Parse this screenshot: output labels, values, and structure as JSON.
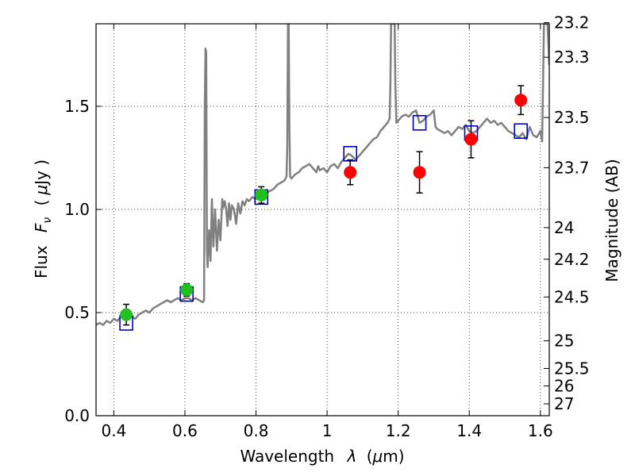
{
  "chart_data": {
    "type": "scatter",
    "title": "",
    "xlabel_text": "Wavelength",
    "xlabel_symbol": "λ",
    "xlabel_unit_open": "(",
    "xlabel_unit_mu": "μ",
    "xlabel_unit_rest": "m)",
    "ylabel_text": "Flux",
    "ylabel_symbol": "F",
    "ylabel_subscript": "ν",
    "ylabel_unit_open": "(",
    "ylabel_unit_mu": "μ",
    "ylabel_unit_rest": "Jy )",
    "y2label": "Magnitude (AB)",
    "xlim": [
      0.35,
      1.625
    ],
    "ylim": [
      0.0,
      1.9
    ],
    "grid": true,
    "xticks": [
      {
        "value": 0.4,
        "label": "0.4"
      },
      {
        "value": 0.6,
        "label": "0.6"
      },
      {
        "value": 0.8,
        "label": "0.8"
      },
      {
        "value": 1.0,
        "label": "1"
      },
      {
        "value": 1.2,
        "label": "1.2"
      },
      {
        "value": 1.4,
        "label": "1.4"
      },
      {
        "value": 1.6,
        "label": "1.6"
      }
    ],
    "yticks": [
      {
        "value": 0.0,
        "label": "0.0"
      },
      {
        "value": 0.5,
        "label": "0.5"
      },
      {
        "value": 1.0,
        "label": "1.0"
      },
      {
        "value": 1.5,
        "label": "1.5"
      }
    ],
    "magnitude_ticks": [
      {
        "value": 23.2,
        "label": "23.2"
      },
      {
        "value": 23.3,
        "label": "23.3"
      },
      {
        "value": 23.5,
        "label": "23.5"
      },
      {
        "value": 23.7,
        "label": "23.7"
      },
      {
        "value": 24,
        "label": "24"
      },
      {
        "value": 24.2,
        "label": "24.2"
      },
      {
        "value": 24.5,
        "label": "24.5"
      },
      {
        "value": 25,
        "label": "25"
      },
      {
        "value": 25.5,
        "label": "25.5"
      },
      {
        "value": 26,
        "label": "26"
      },
      {
        "value": 27,
        "label": "27"
      }
    ],
    "series": [
      {
        "kind": "spectrum",
        "color": "#808080",
        "points": [
          [
            0.35,
            0.44
          ],
          [
            0.36,
            0.45
          ],
          [
            0.37,
            0.44
          ],
          [
            0.38,
            0.46
          ],
          [
            0.39,
            0.45
          ],
          [
            0.4,
            0.47
          ],
          [
            0.41,
            0.46
          ],
          [
            0.42,
            0.48
          ],
          [
            0.43,
            0.47
          ],
          [
            0.44,
            0.49
          ],
          [
            0.45,
            0.48
          ],
          [
            0.46,
            0.47
          ],
          [
            0.47,
            0.49
          ],
          [
            0.48,
            0.5
          ],
          [
            0.49,
            0.51
          ],
          [
            0.5,
            0.5
          ],
          [
            0.51,
            0.52
          ],
          [
            0.52,
            0.53
          ],
          [
            0.53,
            0.54
          ],
          [
            0.54,
            0.55
          ],
          [
            0.55,
            0.56
          ],
          [
            0.56,
            0.55
          ],
          [
            0.57,
            0.56
          ],
          [
            0.58,
            0.57
          ],
          [
            0.59,
            0.56
          ],
          [
            0.6,
            0.57
          ],
          [
            0.61,
            0.57
          ],
          [
            0.62,
            0.56
          ],
          [
            0.63,
            0.57
          ],
          [
            0.64,
            0.56
          ],
          [
            0.65,
            0.55
          ],
          [
            0.654,
            0.56
          ],
          [
            0.656,
            1.5
          ],
          [
            0.658,
            1.78
          ],
          [
            0.66,
            1.76
          ],
          [
            0.662,
            0.8
          ],
          [
            0.664,
            0.72
          ],
          [
            0.668,
            0.9
          ],
          [
            0.672,
            0.75
          ],
          [
            0.676,
            1.05
          ],
          [
            0.68,
            0.82
          ],
          [
            0.685,
            1.0
          ],
          [
            0.69,
            0.8
          ],
          [
            0.695,
            0.95
          ],
          [
            0.7,
            0.85
          ],
          [
            0.705,
            1.05
          ],
          [
            0.708,
            1.01
          ],
          [
            0.712,
            1.04
          ],
          [
            0.716,
            1.0
          ],
          [
            0.72,
            0.92
          ],
          [
            0.724,
            1.03
          ],
          [
            0.728,
            0.95
          ],
          [
            0.732,
            1.02
          ],
          [
            0.738,
            1.0
          ],
          [
            0.744,
            0.93
          ],
          [
            0.75,
            1.03
          ],
          [
            0.756,
            0.98
          ],
          [
            0.762,
            1.04
          ],
          [
            0.768,
            1.02
          ],
          [
            0.774,
            1.05
          ],
          [
            0.78,
            1.04
          ],
          [
            0.79,
            1.06
          ],
          [
            0.8,
            1.05
          ],
          [
            0.81,
            1.07
          ],
          [
            0.82,
            1.06
          ],
          [
            0.83,
            1.08
          ],
          [
            0.84,
            1.09
          ],
          [
            0.85,
            1.1
          ],
          [
            0.86,
            1.12
          ],
          [
            0.87,
            1.13
          ],
          [
            0.88,
            1.14
          ],
          [
            0.886,
            1.16
          ],
          [
            0.888,
            1.3
          ],
          [
            0.89,
            1.9
          ],
          [
            0.892,
            1.9
          ],
          [
            0.894,
            1.4
          ],
          [
            0.896,
            1.16
          ],
          [
            0.9,
            1.15
          ],
          [
            0.91,
            1.17
          ],
          [
            0.92,
            1.18
          ],
          [
            0.93,
            1.2
          ],
          [
            0.94,
            1.21
          ],
          [
            0.95,
            1.22
          ],
          [
            0.96,
            1.2
          ],
          [
            0.97,
            1.18
          ],
          [
            0.975,
            1.21
          ],
          [
            0.98,
            1.19
          ],
          [
            0.99,
            1.2
          ],
          [
            1.0,
            1.18
          ],
          [
            1.01,
            1.21
          ],
          [
            1.02,
            1.22
          ],
          [
            1.03,
            1.2
          ],
          [
            1.04,
            1.23
          ],
          [
            1.05,
            1.25
          ],
          [
            1.06,
            1.27
          ],
          [
            1.07,
            1.26
          ],
          [
            1.08,
            1.24
          ],
          [
            1.09,
            1.26
          ],
          [
            1.1,
            1.28
          ],
          [
            1.11,
            1.3
          ],
          [
            1.12,
            1.32
          ],
          [
            1.13,
            1.34
          ],
          [
            1.14,
            1.35
          ],
          [
            1.15,
            1.38
          ],
          [
            1.16,
            1.4
          ],
          [
            1.17,
            1.42
          ],
          [
            1.176,
            1.44
          ],
          [
            1.178,
            1.6
          ],
          [
            1.18,
            1.9
          ],
          [
            1.19,
            1.9
          ],
          [
            1.192,
            1.6
          ],
          [
            1.195,
            1.42
          ],
          [
            1.2,
            1.43
          ],
          [
            1.21,
            1.45
          ],
          [
            1.22,
            1.46
          ],
          [
            1.23,
            1.45
          ],
          [
            1.24,
            1.47
          ],
          [
            1.25,
            1.48
          ],
          [
            1.26,
            1.42
          ],
          [
            1.27,
            1.43
          ],
          [
            1.28,
            1.45
          ],
          [
            1.29,
            1.46
          ],
          [
            1.3,
            1.48
          ],
          [
            1.305,
            1.4
          ],
          [
            1.31,
            1.39
          ],
          [
            1.32,
            1.38
          ],
          [
            1.33,
            1.37
          ],
          [
            1.34,
            1.38
          ],
          [
            1.35,
            1.36
          ],
          [
            1.36,
            1.38
          ],
          [
            1.37,
            1.4
          ],
          [
            1.38,
            1.39
          ],
          [
            1.39,
            1.41
          ],
          [
            1.4,
            1.38
          ],
          [
            1.41,
            1.37
          ],
          [
            1.42,
            1.38
          ],
          [
            1.43,
            1.4
          ],
          [
            1.44,
            1.42
          ],
          [
            1.45,
            1.44
          ],
          [
            1.46,
            1.42
          ],
          [
            1.47,
            1.43
          ],
          [
            1.48,
            1.41
          ],
          [
            1.49,
            1.42
          ],
          [
            1.5,
            1.4
          ],
          [
            1.51,
            1.38
          ],
          [
            1.52,
            1.37
          ],
          [
            1.53,
            1.36
          ],
          [
            1.54,
            1.35
          ],
          [
            1.55,
            1.37
          ],
          [
            1.56,
            1.34
          ],
          [
            1.57,
            1.4
          ],
          [
            1.58,
            1.36
          ],
          [
            1.59,
            1.35
          ],
          [
            1.6,
            1.38
          ],
          [
            1.605,
            1.33
          ],
          [
            1.61,
            1.9
          ],
          [
            1.62,
            1.9
          ],
          [
            1.625,
            1.7
          ]
        ]
      },
      {
        "kind": "model",
        "marker": "open-square",
        "color": "#0000cc",
        "points": [
          [
            0.435,
            0.45
          ],
          [
            0.605,
            0.59
          ],
          [
            0.815,
            1.06
          ],
          [
            1.065,
            1.27
          ],
          [
            1.26,
            1.42
          ],
          [
            1.405,
            1.37
          ],
          [
            1.545,
            1.38
          ]
        ]
      },
      {
        "kind": "observed",
        "marker": "circle",
        "color": "#1fc01f",
        "points": [
          {
            "x": 0.435,
            "y": 0.49,
            "err": 0.05
          },
          {
            "x": 0.605,
            "y": 0.61,
            "err": 0.03
          },
          {
            "x": 0.815,
            "y": 1.07,
            "err": 0.04
          }
        ]
      },
      {
        "kind": "observed",
        "marker": "circle",
        "color": "#ff0000",
        "points": [
          {
            "x": 1.065,
            "y": 1.18,
            "err": 0.06
          },
          {
            "x": 1.26,
            "y": 1.18,
            "err": 0.1
          },
          {
            "x": 1.405,
            "y": 1.34,
            "err": 0.09
          },
          {
            "x": 1.545,
            "y": 1.53,
            "err": 0.07
          }
        ]
      }
    ]
  }
}
